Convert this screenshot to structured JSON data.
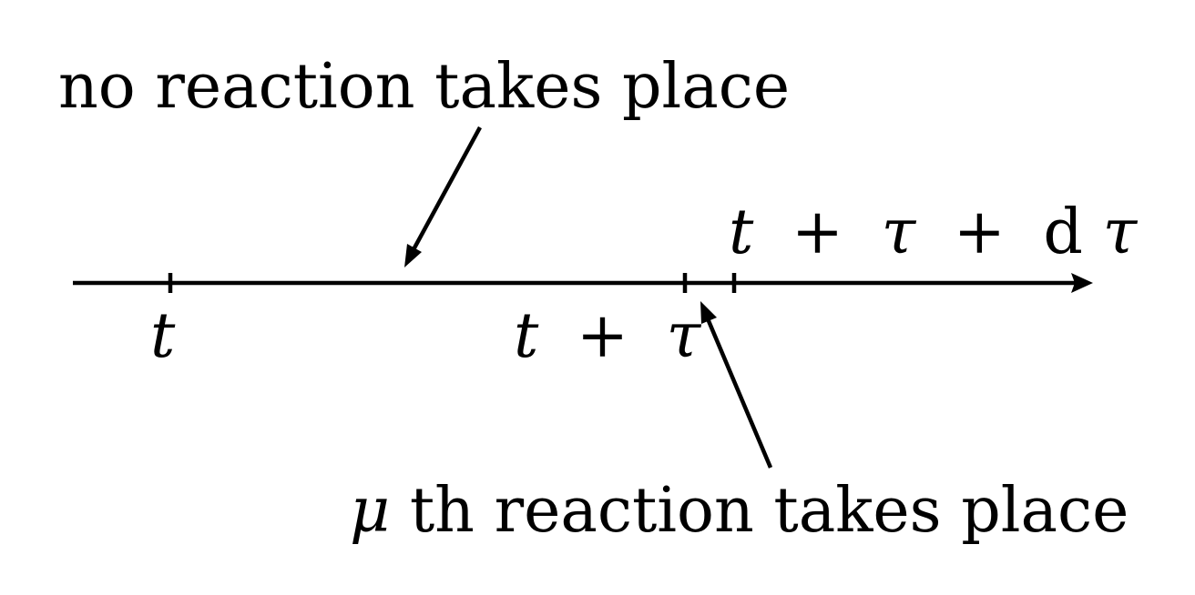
{
  "annotations": {
    "no_reaction": "no reaction takes place",
    "mu_reaction_symbol": "μ",
    "mu_reaction_rest": "th reaction takes place"
  },
  "ticks": {
    "t": "t",
    "t_tau_var": "t",
    "t_tau_op": "+",
    "t_tau_tau": "τ",
    "t_tau_dtau_t": "t",
    "t_tau_dtau_op1": "+",
    "t_tau_dtau_tau": "τ",
    "t_tau_dtau_op2": "+",
    "t_tau_dtau_d": "d",
    "t_tau_dtau_tau2": "τ"
  },
  "colors": {
    "ink": "#000000",
    "background": "#ffffff"
  }
}
